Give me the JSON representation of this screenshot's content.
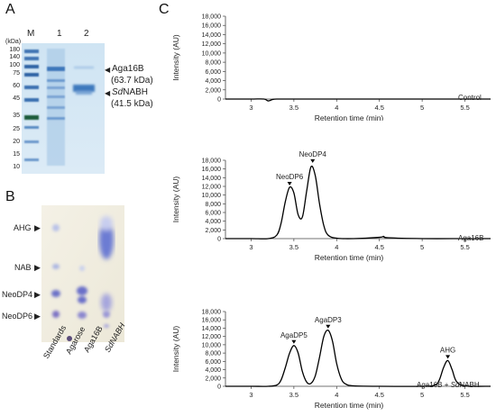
{
  "panels": {
    "a": {
      "letter": "A",
      "unit": "(kDa)",
      "lanes": [
        "M",
        "1",
        "2"
      ],
      "ladder": [
        "180",
        "140",
        "100",
        "75",
        "60",
        "45",
        "35",
        "25",
        "20",
        "15",
        "10"
      ],
      "bands": [
        {
          "name": "Aga16B",
          "size": "(63.7 kDa)"
        },
        {
          "name_italic": "Sd",
          "name_rest": "NABH",
          "size": "(41.5 kDa)"
        }
      ]
    },
    "b": {
      "letter": "B",
      "row_labels": [
        "AHG",
        "NAB",
        "NeoDP4",
        "NeoDP6"
      ],
      "lane_labels": [
        "Standards",
        "Agarose",
        "Aga16B",
        "SdNABH"
      ]
    },
    "c": {
      "letter": "C"
    }
  },
  "chart_data": [
    {
      "type": "line",
      "title": "",
      "condition": "Control",
      "xlabel": "Retention time (min)",
      "ylabel": "Intensity (AU)",
      "xlim": [
        2.7,
        5.8
      ],
      "ylim": [
        0,
        18000
      ],
      "xticks": [
        "3",
        "3.5",
        "4",
        "4.5",
        "5",
        "5.5"
      ],
      "yticks": [
        "0",
        "2,000",
        "4,000",
        "6,000",
        "8,000",
        "10,000",
        "12,000",
        "14,000",
        "16,000",
        "18,000"
      ],
      "x": [
        2.7,
        3.0,
        3.15,
        3.2,
        3.25,
        3.3,
        3.5,
        4.0,
        4.5,
        5.0,
        5.5,
        5.8
      ],
      "y": [
        0,
        0,
        0,
        -400,
        -100,
        0,
        0,
        0,
        0,
        0,
        0,
        0
      ],
      "peaks": []
    },
    {
      "type": "line",
      "title": "",
      "condition": "Aga16B",
      "xlabel": "Retention time (min)",
      "ylabel": "Intensity (AU)",
      "xlim": [
        2.7,
        5.8
      ],
      "ylim": [
        0,
        18000
      ],
      "xticks": [
        "3",
        "3.5",
        "4",
        "4.5",
        "5",
        "5.5"
      ],
      "yticks": [
        "0",
        "2,000",
        "4,000",
        "6,000",
        "8,000",
        "10,000",
        "12,000",
        "14,000",
        "16,000",
        "18,000"
      ],
      "x": [
        2.7,
        3.0,
        3.2,
        3.3,
        3.35,
        3.4,
        3.45,
        3.5,
        3.55,
        3.6,
        3.65,
        3.7,
        3.75,
        3.8,
        3.85,
        3.9,
        4.0,
        4.2,
        4.5,
        4.55,
        4.6,
        5.0,
        5.5,
        5.8
      ],
      "y": [
        0,
        0,
        0,
        800,
        3500,
        8500,
        11800,
        10500,
        5500,
        5000,
        11000,
        16500,
        14500,
        8000,
        3000,
        800,
        100,
        0,
        300,
        500,
        200,
        0,
        0,
        0
      ],
      "peaks": [
        {
          "label": "NeoDP6",
          "x": 3.45,
          "y": 11800
        },
        {
          "label": "NeoDP4",
          "x": 3.72,
          "y": 17000
        }
      ]
    },
    {
      "type": "line",
      "title": "",
      "condition_plain": "Aga16B + ",
      "condition_italic": "Sd",
      "condition_rest": "NABH",
      "xlabel": "Retention time (min)",
      "ylabel": "Intensity (AU)",
      "xlim": [
        2.7,
        5.8
      ],
      "ylim": [
        0,
        18000
      ],
      "xticks": [
        "3",
        "3.5",
        "4",
        "4.5",
        "5",
        "5.5"
      ],
      "yticks": [
        "0",
        "2,000",
        "4,000",
        "6,000",
        "8,000",
        "10,000",
        "12,000",
        "14,000",
        "16,000",
        "18,000"
      ],
      "x": [
        2.7,
        3.0,
        3.2,
        3.3,
        3.35,
        3.4,
        3.45,
        3.5,
        3.55,
        3.6,
        3.65,
        3.7,
        3.75,
        3.8,
        3.85,
        3.9,
        3.95,
        4.0,
        4.05,
        4.1,
        4.2,
        4.5,
        5.0,
        5.15,
        5.2,
        5.25,
        5.3,
        5.35,
        5.4,
        5.5,
        5.8
      ],
      "y": [
        0,
        0,
        0,
        300,
        1500,
        4500,
        8000,
        9800,
        8000,
        3500,
        1000,
        700,
        2500,
        7000,
        12000,
        13500,
        11000,
        5500,
        2000,
        600,
        100,
        0,
        0,
        300,
        1500,
        4500,
        6200,
        4000,
        1200,
        100,
        0
      ],
      "peaks": [
        {
          "label": "AgaDP5",
          "x": 3.5,
          "y": 9800
        },
        {
          "label": "AgaDP3",
          "x": 3.9,
          "y": 13500
        },
        {
          "label": "AHG",
          "x": 5.3,
          "y": 6200
        }
      ]
    }
  ]
}
